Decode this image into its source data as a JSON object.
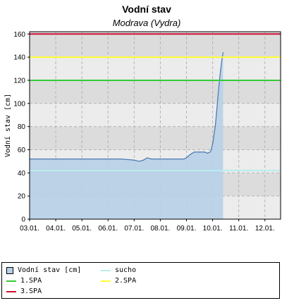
{
  "chart_data": {
    "type": "area",
    "title": "Vodní stav",
    "subtitle": "Modrava (Vydra)",
    "ylabel": "Vodní stav [cm]",
    "xlabel": "",
    "ylim": [
      0,
      162
    ],
    "yticks": [
      "0",
      "20",
      "40",
      "60",
      "80",
      "100",
      "120",
      "140",
      "160"
    ],
    "xticks": [
      "03.01.",
      "04.01.",
      "05.01.",
      "06.01.",
      "07.01.",
      "08.01.",
      "09.01.",
      "10.01.",
      "11.01.",
      "12.01."
    ],
    "series": [
      {
        "name": "Vodní stav [cm]",
        "color": "#b8d0e8",
        "line_color": "#4a78b0",
        "x": [
          3.0,
          3.5,
          4.0,
          4.5,
          5.0,
          5.5,
          6.0,
          6.5,
          7.0,
          7.2,
          7.35,
          7.5,
          7.65,
          7.8,
          8.0,
          8.3,
          8.6,
          8.9,
          9.0,
          9.15,
          9.3,
          9.5,
          9.7,
          9.8,
          9.9,
          9.95,
          10.0,
          10.05,
          10.1,
          10.15,
          10.2,
          10.25,
          10.3,
          10.35,
          10.4
        ],
        "values": [
          52,
          52,
          52,
          52,
          52,
          52,
          52,
          52,
          51,
          50,
          51,
          53,
          52,
          52,
          52,
          52,
          52,
          52,
          53,
          56,
          58,
          58,
          58,
          57,
          58,
          60,
          65,
          72,
          80,
          92,
          105,
          117,
          128,
          137,
          144
        ]
      }
    ],
    "reference_lines": [
      {
        "name": "sucho",
        "value": 42,
        "color": "#b8ecec"
      },
      {
        "name": "1.SPA",
        "value": 120,
        "color": "#33cc33"
      },
      {
        "name": "2.SPA",
        "value": 140,
        "color": "#ffff33"
      },
      {
        "name": "3.SPA",
        "value": 160,
        "color": "#cc1133"
      }
    ],
    "grid": true,
    "legend_placement": "bottom"
  }
}
